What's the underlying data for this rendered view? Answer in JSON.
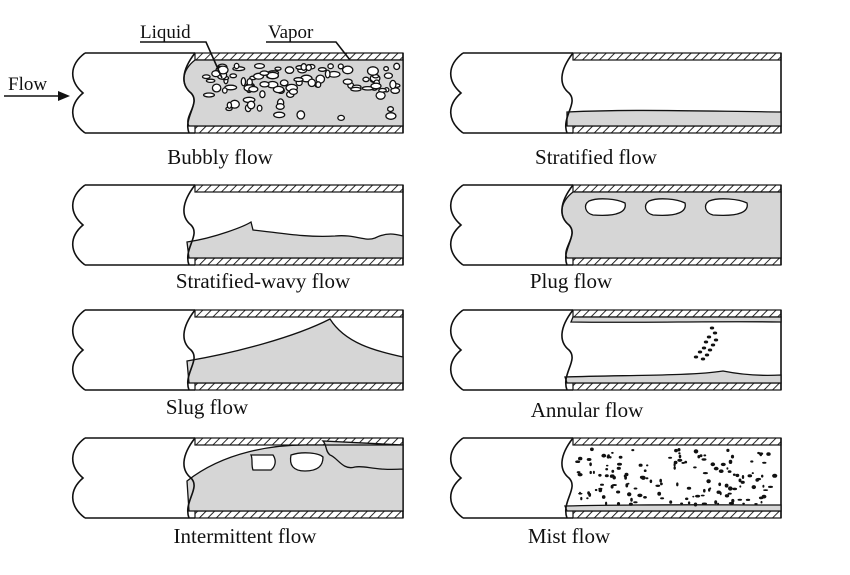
{
  "callouts": {
    "liquid": "Liquid",
    "vapor": "Vapor",
    "flow": "Flow"
  },
  "patterns": [
    {
      "id": "bubbly",
      "caption": "Bubbly flow"
    },
    {
      "id": "stratified",
      "caption": "Stratified flow"
    },
    {
      "id": "stratified-wavy",
      "caption": "Stratified-wavy flow"
    },
    {
      "id": "plug",
      "caption": "Plug flow"
    },
    {
      "id": "slug",
      "caption": "Slug flow"
    },
    {
      "id": "annular",
      "caption": "Annular flow"
    },
    {
      "id": "intermittent",
      "caption": "Intermittent flow"
    },
    {
      "id": "mist",
      "caption": "Mist flow"
    }
  ]
}
